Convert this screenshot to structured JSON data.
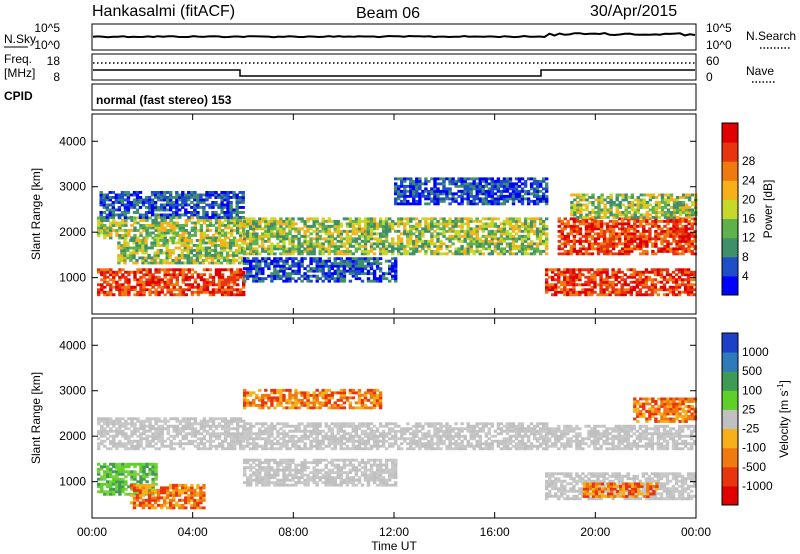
{
  "header": {
    "station": "Hankasalmi (fitACF)",
    "beam": "Beam 06",
    "date": "30/Apr/2015"
  },
  "aux_labels": {
    "nsky": "N.Sky",
    "nsearch": "N.Search",
    "freq": "Freq.",
    "freq_unit": "[MHz]",
    "nave": "Nave",
    "cpid": "CPID",
    "noise_tick_top": "10^5",
    "noise_tick_bottom": "10^0",
    "freq_tick_top": "18",
    "freq_tick_bottom": "8",
    "nave_tick_top": "60",
    "nave_tick_bottom": "0"
  },
  "mode_text": "normal (fast stereo) 153",
  "chart_data": [
    {
      "type": "heatmap",
      "name": "power-panel",
      "ylabel": "Slant Range [km]",
      "xlabel": "",
      "x_ticks": [
        "00:00",
        "04:00",
        "08:00",
        "12:00",
        "16:00",
        "20:00",
        "00:00"
      ],
      "y_ticks": [
        "1000",
        "2000",
        "3000",
        "4000"
      ],
      "y_tick_values": [
        1000,
        2000,
        3000,
        4000
      ],
      "xlim": [
        0,
        24
      ],
      "ylim": [
        200,
        4600
      ],
      "colorbar_label": "Power [dB]",
      "colorbar_ticks": [
        "4",
        "8",
        "12",
        "16",
        "20",
        "24",
        "28"
      ],
      "colorbar_colors": [
        "#0000ff",
        "#1e4fc8",
        "#3f8f6a",
        "#5fb14d",
        "#c8d82a",
        "#f5b01a",
        "#f07a10",
        "#e83510",
        "#e00000"
      ],
      "bands": [
        {
          "t0": 0.2,
          "t1": 6.0,
          "r0": 600,
          "r1": 1200,
          "level": "high"
        },
        {
          "t0": 0.2,
          "t1": 6.0,
          "r0": 1850,
          "r1": 2300,
          "level": "mid"
        },
        {
          "t0": 1.0,
          "t1": 6.0,
          "r0": 1300,
          "r1": 1800,
          "level": "mid"
        },
        {
          "t0": 6.0,
          "t1": 18.0,
          "r0": 1500,
          "r1": 2300,
          "level": "mid"
        },
        {
          "t0": 6.0,
          "t1": 12.0,
          "r0": 900,
          "r1": 1400,
          "level": "low"
        },
        {
          "t0": 18.0,
          "t1": 24.0,
          "r0": 600,
          "r1": 1200,
          "level": "high"
        },
        {
          "t0": 18.5,
          "t1": 24.0,
          "r0": 1500,
          "r1": 2300,
          "level": "high"
        },
        {
          "t0": 19.0,
          "t1": 24.0,
          "r0": 2300,
          "r1": 2800,
          "level": "mid"
        },
        {
          "t0": 0.3,
          "t1": 6.0,
          "r0": 2300,
          "r1": 2900,
          "level": "low"
        },
        {
          "t0": 12.0,
          "t1": 18.0,
          "r0": 2600,
          "r1": 3200,
          "level": "low"
        }
      ]
    },
    {
      "type": "heatmap",
      "name": "velocity-panel",
      "ylabel": "Slant Range [km]",
      "xlabel": "Time UT",
      "x_ticks": [
        "00:00",
        "04:00",
        "08:00",
        "12:00",
        "16:00",
        "20:00",
        "00:00"
      ],
      "y_ticks": [
        "1000",
        "2000",
        "3000",
        "4000"
      ],
      "y_tick_values": [
        1000,
        2000,
        3000,
        4000
      ],
      "xlim": [
        0,
        24
      ],
      "ylim": [
        200,
        4600
      ],
      "colorbar_label": "Velocity [m s",
      "colorbar_label_sup": "-1",
      "colorbar_label_end": "]",
      "colorbar_ticks": [
        "1000",
        "500",
        "100",
        "25",
        "-25",
        "-100",
        "-500",
        "-1000"
      ],
      "colorbar_colors": [
        "#1e40c8",
        "#2f7ab8",
        "#3f9a55",
        "#5fd02a",
        "#c0c0c0",
        "#f5b01a",
        "#f07a10",
        "#e83510",
        "#e00000"
      ],
      "bands": [
        {
          "t0": 0.2,
          "t1": 6.0,
          "r0": 1700,
          "r1": 2400,
          "level": "ground"
        },
        {
          "t0": 0.2,
          "t1": 2.5,
          "r0": 700,
          "r1": 1400,
          "level": "pos"
        },
        {
          "t0": 1.5,
          "t1": 4.5,
          "r0": 400,
          "r1": 900,
          "level": "neg"
        },
        {
          "t0": 6.0,
          "t1": 18.0,
          "r0": 1700,
          "r1": 2300,
          "level": "ground"
        },
        {
          "t0": 6.0,
          "t1": 12.0,
          "r0": 900,
          "r1": 1500,
          "level": "ground"
        },
        {
          "t0": 6.0,
          "t1": 11.5,
          "r0": 2600,
          "r1": 3000,
          "level": "neg"
        },
        {
          "t0": 18.0,
          "t1": 24.0,
          "r0": 1700,
          "r1": 2200,
          "level": "ground"
        },
        {
          "t0": 18.0,
          "t1": 24.0,
          "r0": 600,
          "r1": 1200,
          "level": "ground"
        },
        {
          "t0": 19.5,
          "t1": 22.5,
          "r0": 650,
          "r1": 950,
          "level": "neg"
        },
        {
          "t0": 21.5,
          "t1": 24.0,
          "r0": 2300,
          "r1": 2800,
          "level": "neg"
        }
      ]
    }
  ]
}
